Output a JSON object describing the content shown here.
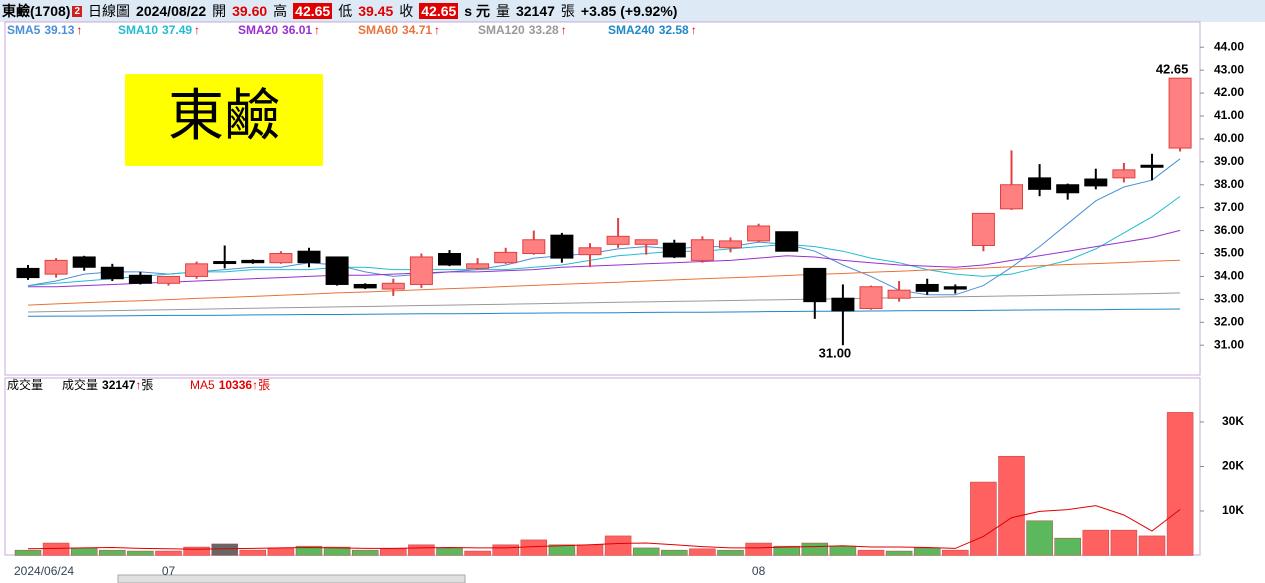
{
  "header": {
    "name": "東鹼(1708)",
    "badge": "2",
    "period": "日線圖",
    "date": "2024/08/22",
    "fields": [
      {
        "label": "開",
        "value": "39.60"
      },
      {
        "label": "高",
        "value": "42.65"
      },
      {
        "label": "低",
        "value": "39.45"
      },
      {
        "label": "收",
        "value": "42.65"
      }
    ],
    "unit": "s 元",
    "volume_label": "量",
    "volume": "32147",
    "volume_unit": "張",
    "change": "+3.85 (+9.92%)"
  },
  "chart_data": [
    {
      "type": "candlestick",
      "stamp": "東鹼",
      "open": [
        34.35,
        34.1,
        34.85,
        34.4,
        34.05,
        33.7,
        34.0,
        34.65,
        34.7,
        34.6,
        35.1,
        34.85,
        33.65,
        33.45,
        33.65,
        35.0,
        34.35,
        34.6,
        35.0,
        35.8,
        34.95,
        35.4,
        35.4,
        35.45,
        34.7,
        35.25,
        35.55,
        35.95,
        34.35,
        33.05,
        32.6,
        33.05,
        33.65,
        33.55,
        35.35,
        36.95,
        38.3,
        38.0,
        38.25,
        38.3,
        38.85,
        39.6
      ],
      "high": [
        34.5,
        34.8,
        34.9,
        34.55,
        34.2,
        34.0,
        34.65,
        35.35,
        34.75,
        35.1,
        35.25,
        34.85,
        33.7,
        33.9,
        35.0,
        35.15,
        34.8,
        35.25,
        36.0,
        35.9,
        35.45,
        36.55,
        35.6,
        35.6,
        35.75,
        35.7,
        36.3,
        35.95,
        34.35,
        33.65,
        33.6,
        33.8,
        33.9,
        33.65,
        36.75,
        39.5,
        38.9,
        38.05,
        38.7,
        38.95,
        39.35,
        42.65
      ],
      "low": [
        33.85,
        33.95,
        34.25,
        33.8,
        33.65,
        33.6,
        33.9,
        34.35,
        34.55,
        34.55,
        34.4,
        33.6,
        33.45,
        33.15,
        33.5,
        34.45,
        34.3,
        34.55,
        34.95,
        34.6,
        34.4,
        35.25,
        34.95,
        34.8,
        34.6,
        35.05,
        35.5,
        35.1,
        32.15,
        31.0,
        32.55,
        32.9,
        33.2,
        33.25,
        35.1,
        36.9,
        37.5,
        37.35,
        37.8,
        38.1,
        38.2,
        39.45
      ],
      "close": [
        33.95,
        34.7,
        34.4,
        33.9,
        33.7,
        34.0,
        34.55,
        34.6,
        34.6,
        35.0,
        34.6,
        33.65,
        33.5,
        33.7,
        34.85,
        34.5,
        34.55,
        35.05,
        35.6,
        34.8,
        35.25,
        35.75,
        35.6,
        34.85,
        35.6,
        35.55,
        36.2,
        35.1,
        32.9,
        32.5,
        33.55,
        33.4,
        33.35,
        33.45,
        36.75,
        38.0,
        37.8,
        37.65,
        37.95,
        38.65,
        38.8,
        42.65
      ],
      "up_color": "#ff8080",
      "up_border": "#e04040",
      "down_color": "#000000",
      "series": [
        {
          "name": "SMA5",
          "trend": "↑",
          "color": "#4a90d9",
          "values": [
            33.6,
            33.8,
            34.1,
            34.2,
            34.2,
            34.1,
            34.2,
            34.3,
            34.4,
            34.4,
            34.6,
            34.5,
            34.2,
            34.0,
            34.1,
            34.2,
            34.3,
            34.5,
            34.8,
            34.9,
            35.0,
            35.2,
            35.3,
            35.2,
            35.3,
            35.3,
            35.5,
            35.4,
            35.1,
            34.5,
            34.0,
            33.4,
            33.2,
            33.2,
            33.6,
            34.4,
            35.3,
            36.3,
            37.3,
            37.9,
            38.2,
            39.13
          ]
        },
        {
          "name": "SMA10",
          "trend": "↑",
          "color": "#22bcd0",
          "values": [
            33.6,
            33.7,
            33.8,
            33.9,
            34.0,
            34.1,
            34.2,
            34.2,
            34.3,
            34.3,
            34.3,
            34.4,
            34.4,
            34.3,
            34.3,
            34.3,
            34.3,
            34.3,
            34.4,
            34.5,
            34.7,
            34.9,
            35.0,
            35.1,
            35.1,
            35.2,
            35.3,
            35.4,
            35.3,
            35.1,
            34.8,
            34.6,
            34.3,
            34.1,
            34.0,
            34.1,
            34.4,
            34.7,
            35.2,
            35.9,
            36.6,
            37.49
          ]
        },
        {
          "name": "SMA20",
          "trend": "↑",
          "color": "#9a2fd0",
          "values": [
            33.55,
            33.55,
            33.6,
            33.65,
            33.7,
            33.75,
            33.8,
            33.85,
            33.9,
            33.95,
            34.0,
            34.05,
            34.05,
            34.1,
            34.15,
            34.2,
            34.2,
            34.25,
            34.3,
            34.4,
            34.45,
            34.5,
            34.55,
            34.6,
            34.65,
            34.7,
            34.8,
            34.9,
            34.85,
            34.7,
            34.6,
            34.5,
            34.45,
            34.4,
            34.5,
            34.7,
            34.9,
            35.1,
            35.3,
            35.5,
            35.7,
            36.01
          ]
        },
        {
          "name": "SMA60",
          "trend": "↑",
          "color": "#e8733a",
          "values": [
            32.75,
            32.8,
            32.85,
            32.9,
            32.94,
            32.99,
            33.04,
            33.08,
            33.13,
            33.18,
            33.23,
            33.28,
            33.32,
            33.37,
            33.42,
            33.47,
            33.51,
            33.56,
            33.61,
            33.66,
            33.7,
            33.75,
            33.8,
            33.85,
            33.9,
            33.94,
            33.99,
            34.04,
            34.09,
            34.13,
            34.18,
            34.23,
            34.28,
            34.32,
            34.37,
            34.42,
            34.47,
            34.52,
            34.56,
            34.61,
            34.66,
            34.71
          ]
        },
        {
          "name": "SMA120",
          "trend": "↑",
          "color": "#999999",
          "values": [
            32.45,
            32.47,
            32.49,
            32.51,
            32.53,
            32.55,
            32.57,
            32.59,
            32.61,
            32.63,
            32.65,
            32.67,
            32.69,
            32.71,
            32.73,
            32.75,
            32.77,
            32.79,
            32.81,
            32.83,
            32.85,
            32.87,
            32.89,
            32.91,
            32.93,
            32.95,
            32.97,
            32.99,
            33.01,
            33.03,
            33.05,
            33.07,
            33.09,
            33.11,
            33.13,
            33.15,
            33.17,
            33.19,
            33.21,
            33.23,
            33.25,
            33.28
          ]
        },
        {
          "name": "SMA240",
          "trend": "↑",
          "color": "#1e88c8",
          "values": [
            32.26,
            32.27,
            32.27,
            32.28,
            32.29,
            32.3,
            32.3,
            32.31,
            32.32,
            32.33,
            32.34,
            32.34,
            32.35,
            32.36,
            32.37,
            32.37,
            32.38,
            32.39,
            32.4,
            32.41,
            32.41,
            32.42,
            32.43,
            32.44,
            32.44,
            32.45,
            32.46,
            32.47,
            32.48,
            32.48,
            32.49,
            32.5,
            32.51,
            32.51,
            32.52,
            32.53,
            32.54,
            32.55,
            32.55,
            32.56,
            32.57,
            32.58
          ]
        }
      ],
      "annotations": [
        {
          "value": 42.65,
          "label": "42.65"
        },
        {
          "value": 31,
          "label": "31.00"
        }
      ],
      "ylim": [
        29.7,
        45.1
      ],
      "yticks": [
        {
          "value": 31,
          "label": "31.00"
        },
        {
          "value": 32,
          "label": "32.00"
        },
        {
          "value": 33,
          "label": "33.00"
        },
        {
          "value": 34,
          "label": "34.00"
        },
        {
          "value": 35,
          "label": "35.00"
        },
        {
          "value": 36,
          "label": "36.00"
        },
        {
          "value": 37,
          "label": "37.00"
        },
        {
          "value": 38,
          "label": "38.00"
        },
        {
          "value": 39,
          "label": "39.00"
        },
        {
          "value": 40,
          "label": "40.00"
        },
        {
          "value": 41,
          "label": "41.00"
        },
        {
          "value": 42,
          "label": "42.00"
        },
        {
          "value": 43,
          "label": "43.00"
        },
        {
          "value": 44,
          "label": "44.00"
        }
      ],
      "grid": false
    },
    {
      "type": "bar",
      "title": "成交量",
      "unit": "張",
      "categories": [
        "2024/06/24",
        null,
        null,
        null,
        null,
        "07",
        null,
        null,
        null,
        null,
        null,
        null,
        null,
        null,
        null,
        null,
        null,
        null,
        null,
        null,
        null,
        null,
        null,
        null,
        null,
        null,
        "08",
        null,
        null,
        null,
        null,
        null,
        null,
        null,
        null,
        null,
        null,
        null,
        null,
        null,
        null,
        null
      ],
      "series": [
        {
          "name": "成交量",
          "trend": "↑",
          "color": "#000000",
          "values": [
            1200,
            2800,
            1700,
            1200,
            1000,
            1000,
            1900,
            2600,
            1200,
            1700,
            2100,
            1900,
            1200,
            1500,
            2400,
            1700,
            1000,
            2400,
            3500,
            2400,
            2400,
            4400,
            1700,
            1200,
            1500,
            1200,
            2800,
            2100,
            2800,
            2100,
            1200,
            1000,
            1700,
            1200,
            16500,
            22300,
            7800,
            3900,
            5700,
            5700,
            4400,
            32147
          ],
          "colors": [
            "#5cb85c",
            "#ff6060",
            "#5cb85c",
            "#5cb85c",
            "#5cb85c",
            "#ff6060",
            "#ff6060",
            "#666666",
            "#ff6060",
            "#ff6060",
            "#5cb85c",
            "#5cb85c",
            "#5cb85c",
            "#ff6060",
            "#ff6060",
            "#5cb85c",
            "#ff6060",
            "#ff6060",
            "#ff6060",
            "#5cb85c",
            "#ff6060",
            "#ff6060",
            "#5cb85c",
            "#5cb85c",
            "#ff6060",
            "#5cb85c",
            "#ff6060",
            "#5cb85c",
            "#5cb85c",
            "#5cb85c",
            "#ff6060",
            "#5cb85c",
            "#5cb85c",
            "#ff6060",
            "#ff6060",
            "#ff6060",
            "#5cb85c",
            "#5cb85c",
            "#ff6060",
            "#ff6060",
            "#ff6060",
            "#ff6060"
          ]
        },
        {
          "name": "MA5",
          "trend": "↑",
          "color": "#e00000",
          "type": "line",
          "values": [
            1500,
            1600,
            1700,
            1800,
            1600,
            1500,
            1400,
            1500,
            1600,
            1700,
            1800,
            1700,
            1600,
            1600,
            1700,
            1800,
            1700,
            1700,
            2000,
            2200,
            2400,
            2700,
            2800,
            2400,
            2000,
            1700,
            1700,
            1900,
            2000,
            2200,
            1900,
            1900,
            1800,
            1600,
            4300,
            8500,
            9900,
            10300,
            11200,
            9100,
            5500,
            10336
          ]
        }
      ],
      "ylim": [
        0,
        38300
      ],
      "yticks": [
        {
          "value": 10000,
          "label": "10K"
        },
        {
          "value": 20000,
          "label": "20K"
        },
        {
          "value": 30000,
          "label": "30K"
        }
      ],
      "grid": false
    }
  ]
}
